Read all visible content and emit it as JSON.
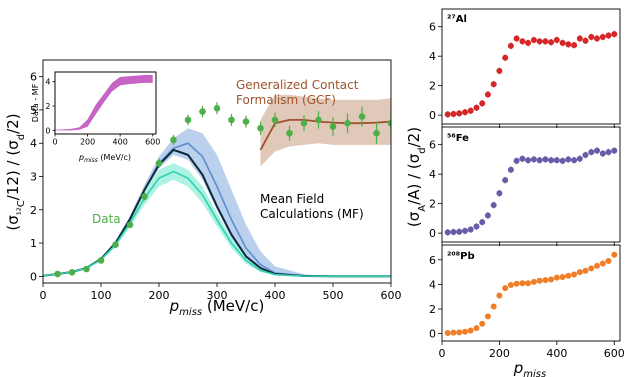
{
  "chart_data": [
    {
      "type": "line",
      "id": "main",
      "xlim": [
        0,
        600
      ],
      "ylim": [
        -0.2,
        6.5
      ],
      "xticks": [
        0,
        100,
        200,
        300,
        400,
        500,
        600
      ],
      "yticks": [
        0,
        1,
        2,
        3,
        4,
        5,
        6
      ],
      "xlabel": {
        "main": "p",
        "sub": "miss",
        "unit": " (MeV/c)"
      },
      "ylabel": "(σ₁₂C/12) / (σd/2)",
      "annotations": {
        "gcf_line1": "Generalized Contact",
        "gcf_line2": "Formalism (GCF)",
        "mf_line1": "Mean Field",
        "mf_line2": "Calculations (MF)",
        "data": "Data"
      },
      "colors": {
        "data": "#4daf4a",
        "mf_black": "#0a2a3a",
        "mf_blue": "#5b8fd0",
        "mf_blue_band": "#aec8ea",
        "mf_teal": "#2fd3b0",
        "mf_teal_band": "#9ff0dd",
        "gcf": "#a0522d",
        "gcf_band": "#dcc0ad"
      },
      "data_points": {
        "x": [
          25,
          50,
          75,
          100,
          125,
          150,
          175,
          200,
          225,
          250,
          275,
          300,
          325,
          350,
          375,
          400,
          425,
          450,
          475,
          500,
          525,
          550,
          575,
          600
        ],
        "y": [
          0.07,
          0.12,
          0.22,
          0.48,
          0.95,
          1.55,
          2.4,
          3.4,
          4.1,
          4.7,
          4.95,
          5.05,
          4.7,
          4.65,
          4.45,
          4.7,
          4.3,
          4.6,
          4.7,
          4.5,
          4.6,
          4.8,
          4.3,
          4.6
        ],
        "yerr": [
          0.03,
          0.04,
          0.05,
          0.07,
          0.09,
          0.1,
          0.12,
          0.14,
          0.15,
          0.16,
          0.17,
          0.18,
          0.18,
          0.18,
          0.2,
          0.22,
          0.22,
          0.24,
          0.26,
          0.28,
          0.3,
          0.3,
          0.32,
          0.35
        ]
      },
      "series": [
        {
          "role": "mf_blue",
          "x": [
            0,
            25,
            50,
            75,
            100,
            125,
            150,
            175,
            200,
            225,
            250,
            275,
            300,
            325,
            350,
            375,
            400,
            450,
            500,
            600
          ],
          "y": [
            0.02,
            0.07,
            0.13,
            0.25,
            0.52,
            1.0,
            1.72,
            2.6,
            3.4,
            3.85,
            4.0,
            3.6,
            2.7,
            1.7,
            0.85,
            0.35,
            0.1,
            0.02,
            0.0,
            0.0
          ]
        },
        {
          "role": "mf_black",
          "x": [
            0,
            25,
            50,
            75,
            100,
            125,
            150,
            175,
            200,
            225,
            250,
            275,
            300,
            325,
            350,
            375,
            400,
            450,
            500,
            600
          ],
          "y": [
            0.02,
            0.07,
            0.13,
            0.25,
            0.52,
            1.0,
            1.72,
            2.6,
            3.35,
            3.8,
            3.65,
            3.05,
            2.1,
            1.25,
            0.6,
            0.25,
            0.07,
            0.01,
            0.0,
            0.0
          ]
        },
        {
          "role": "mf_teal",
          "x": [
            0,
            25,
            50,
            75,
            100,
            125,
            150,
            175,
            200,
            225,
            250,
            275,
            300,
            325,
            350,
            375,
            400,
            450,
            500,
            600
          ],
          "y": [
            0.02,
            0.07,
            0.13,
            0.25,
            0.5,
            0.95,
            1.6,
            2.35,
            2.95,
            3.15,
            2.95,
            2.45,
            1.7,
            1.0,
            0.48,
            0.18,
            0.05,
            0.01,
            0.0,
            0.0
          ]
        }
      ],
      "bands": [
        {
          "role": "mf_blue_band",
          "x": [
            0,
            25,
            50,
            75,
            100,
            125,
            150,
            175,
            200,
            225,
            250,
            275,
            300,
            325,
            350,
            375,
            400,
            450,
            500,
            600
          ],
          "lo": [
            0.02,
            0.07,
            0.13,
            0.25,
            0.5,
            0.97,
            1.65,
            2.5,
            3.25,
            3.65,
            3.5,
            2.9,
            2.0,
            1.15,
            0.55,
            0.2,
            0.06,
            0.01,
            0.0,
            0.0
          ],
          "hi": [
            0.02,
            0.07,
            0.14,
            0.27,
            0.56,
            1.07,
            1.82,
            2.75,
            3.6,
            4.15,
            4.45,
            4.3,
            3.65,
            2.6,
            1.55,
            0.75,
            0.3,
            0.06,
            0.01,
            0.0
          ]
        },
        {
          "role": "mf_teal_band",
          "x": [
            0,
            25,
            50,
            75,
            100,
            125,
            150,
            175,
            200,
            225,
            250,
            275,
            300,
            325,
            350,
            375,
            400,
            450,
            500,
            600
          ],
          "lo": [
            0.02,
            0.06,
            0.12,
            0.23,
            0.46,
            0.88,
            1.48,
            2.15,
            2.7,
            2.9,
            2.7,
            2.2,
            1.5,
            0.85,
            0.38,
            0.13,
            0.03,
            0.0,
            0.0,
            0.0
          ],
          "hi": [
            0.02,
            0.07,
            0.14,
            0.27,
            0.54,
            1.02,
            1.72,
            2.55,
            3.2,
            3.4,
            3.2,
            2.7,
            1.9,
            1.15,
            0.58,
            0.24,
            0.08,
            0.02,
            0.0,
            0.0
          ]
        },
        {
          "role": "gcf_band",
          "x": [
            375,
            400,
            425,
            450,
            475,
            500,
            525,
            550,
            575,
            600
          ],
          "lo": [
            3.3,
            3.75,
            3.9,
            3.95,
            4.0,
            3.95,
            3.95,
            3.95,
            3.95,
            3.95
          ],
          "hi": [
            4.7,
            5.45,
            5.45,
            5.4,
            5.35,
            5.3,
            5.3,
            5.3,
            5.3,
            5.35
          ]
        }
      ],
      "gcf_line": {
        "x": [
          375,
          400,
          425,
          450,
          475,
          500,
          525,
          550,
          575,
          600
        ],
        "y": [
          3.8,
          4.6,
          4.7,
          4.7,
          4.65,
          4.62,
          4.6,
          4.6,
          4.62,
          4.65
        ]
      }
    },
    {
      "type": "area",
      "id": "inset",
      "ylabel": "Data - MF",
      "xlabel": {
        "main": "p",
        "sub": "miss",
        "unit": " (MeV/c)"
      },
      "xlim": [
        0,
        620
      ],
      "ylim": [
        -0.3,
        4.8
      ],
      "xticks": [
        0,
        200,
        400,
        600
      ],
      "yticks": [
        0,
        2,
        4
      ],
      "color": "#c054c0",
      "x": [
        0,
        50,
        100,
        150,
        200,
        250,
        300,
        350,
        400,
        450,
        500,
        550,
        600
      ],
      "lo": [
        0.0,
        0.0,
        0.0,
        0.05,
        0.3,
        1.3,
        2.3,
        3.2,
        3.7,
        3.8,
        3.85,
        3.9,
        3.9
      ],
      "hi": [
        0.05,
        0.08,
        0.12,
        0.25,
        0.9,
        2.1,
        3.0,
        3.9,
        4.4,
        4.45,
        4.5,
        4.55,
        4.55
      ]
    },
    {
      "type": "scatter",
      "id": "al",
      "label": "²⁷Al",
      "color": "#d62728",
      "xlim": [
        0,
        620
      ],
      "ylim": [
        -0.6,
        7.2
      ],
      "xticks": [
        0,
        200,
        400,
        600
      ],
      "yticks": [
        0,
        2,
        4,
        6
      ],
      "x": [
        20,
        40,
        60,
        80,
        100,
        120,
        140,
        160,
        180,
        200,
        220,
        240,
        260,
        280,
        300,
        320,
        340,
        360,
        380,
        400,
        420,
        440,
        460,
        480,
        500,
        520,
        540,
        560,
        580,
        600
      ],
      "y": [
        0.05,
        0.08,
        0.12,
        0.2,
        0.3,
        0.5,
        0.8,
        1.4,
        2.1,
        3.0,
        3.9,
        4.7,
        5.2,
        5.0,
        4.9,
        5.1,
        5.0,
        5.0,
        4.95,
        5.1,
        4.9,
        4.8,
        4.75,
        5.2,
        5.05,
        5.3,
        5.2,
        5.3,
        5.4,
        5.5
      ]
    },
    {
      "type": "scatter",
      "id": "fe",
      "label": "⁵⁶Fe",
      "color": "#6a5aa8",
      "xlim": [
        0,
        620
      ],
      "ylim": [
        -0.6,
        7.2
      ],
      "xticks": [
        0,
        200,
        400,
        600
      ],
      "yticks": [
        0,
        2,
        4,
        6
      ],
      "x": [
        20,
        40,
        60,
        80,
        100,
        120,
        140,
        160,
        180,
        200,
        220,
        240,
        260,
        280,
        300,
        320,
        340,
        360,
        380,
        400,
        420,
        440,
        460,
        480,
        500,
        520,
        540,
        560,
        580,
        600
      ],
      "y": [
        0.05,
        0.08,
        0.1,
        0.15,
        0.25,
        0.45,
        0.75,
        1.2,
        1.9,
        2.7,
        3.6,
        4.3,
        4.9,
        5.05,
        4.95,
        5.0,
        4.95,
        5.0,
        4.95,
        4.95,
        4.9,
        5.0,
        4.95,
        5.05,
        5.3,
        5.5,
        5.6,
        5.4,
        5.5,
        5.6
      ]
    },
    {
      "type": "scatter",
      "id": "pb",
      "label": "²⁰⁸Pb",
      "color": "#f07d28",
      "xlim": [
        0,
        620
      ],
      "ylim": [
        -0.6,
        7.2
      ],
      "xticks": [
        0,
        200,
        400,
        600
      ],
      "yticks": [
        0,
        2,
        4,
        6
      ],
      "x": [
        20,
        40,
        60,
        80,
        100,
        120,
        140,
        160,
        180,
        200,
        220,
        240,
        260,
        280,
        300,
        320,
        340,
        360,
        380,
        400,
        420,
        440,
        460,
        480,
        500,
        520,
        540,
        560,
        580,
        600
      ],
      "y": [
        0.05,
        0.08,
        0.1,
        0.15,
        0.25,
        0.45,
        0.8,
        1.4,
        2.2,
        3.1,
        3.7,
        3.95,
        4.05,
        4.1,
        4.1,
        4.2,
        4.3,
        4.35,
        4.4,
        4.55,
        4.6,
        4.7,
        4.8,
        5.0,
        5.1,
        5.3,
        5.5,
        5.7,
        5.9,
        6.4
      ]
    }
  ],
  "right_axes": {
    "ylabel": "(σA/A) / (σd/2)",
    "xlabel": {
      "main": "p",
      "sub": "miss"
    }
  }
}
